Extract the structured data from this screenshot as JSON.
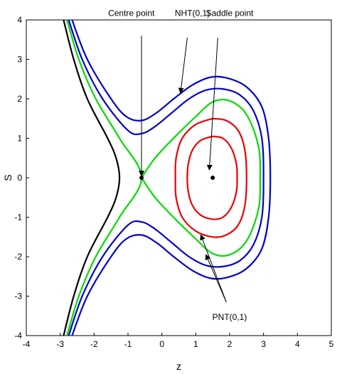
{
  "chart_data": {
    "type": "line",
    "xlabel": "z",
    "ylabel": "S",
    "xlim": [
      -4,
      5
    ],
    "ylim": [
      -4,
      4
    ],
    "x_ticks": [
      "-4",
      "-3",
      "-2",
      "-1",
      "0",
      "1",
      "2",
      "3",
      "4",
      "5"
    ],
    "y_ticks": [
      "4",
      "3",
      "2",
      "1",
      "0",
      "-1",
      "-2",
      "-3",
      "-4"
    ],
    "grid": false,
    "centre_point": {
      "x": -0.6,
      "y": 0
    },
    "saddle_point": {
      "x": 1.5,
      "y": 0
    },
    "colors": {
      "black": "#000000",
      "green": "#00dd00",
      "blue": "#0000cc",
      "red": "#ee0000"
    },
    "series": [
      {
        "color": "black",
        "points": [
          [
            -2.9,
            4.0
          ],
          [
            -2.6,
            3.0
          ],
          [
            -2.2,
            2.0
          ],
          [
            -1.6,
            1.0
          ],
          [
            -1.35,
            0.5
          ],
          [
            -1.25,
            0.0
          ],
          [
            -1.35,
            -0.5
          ],
          [
            -1.6,
            -1.0
          ],
          [
            -2.2,
            -2.0
          ],
          [
            -2.6,
            -3.0
          ],
          [
            -2.9,
            -4.0
          ]
        ]
      },
      {
        "color": "green",
        "points": [
          [
            -2.8,
            4.0
          ],
          [
            -2.45,
            3.0
          ],
          [
            -1.95,
            2.0
          ],
          [
            -1.25,
            1.0
          ],
          [
            -0.6,
            0.0
          ],
          [
            -1.25,
            -1.0
          ],
          [
            -1.95,
            -2.0
          ],
          [
            -2.45,
            -3.0
          ],
          [
            -2.8,
            -4.0
          ]
        ]
      },
      {
        "color": "green",
        "points": [
          [
            -0.6,
            0.0
          ],
          [
            -0.2,
            0.5
          ],
          [
            0.4,
            1.05
          ],
          [
            1.0,
            1.55
          ],
          [
            1.5,
            1.92
          ],
          [
            2.0,
            1.95
          ],
          [
            2.5,
            1.6
          ],
          [
            2.85,
            0.8
          ],
          [
            2.9,
            0.0
          ],
          [
            2.85,
            -0.8
          ],
          [
            2.5,
            -1.6
          ],
          [
            2.0,
            -1.95
          ],
          [
            1.5,
            -1.92
          ],
          [
            1.0,
            -1.55
          ],
          [
            0.4,
            -1.05
          ],
          [
            -0.2,
            -0.5
          ],
          [
            -0.6,
            0.0
          ]
        ]
      },
      {
        "color": "blue",
        "points": [
          [
            -2.75,
            4.0
          ],
          [
            -2.35,
            3.0
          ],
          [
            -1.75,
            2.0
          ],
          [
            -1.0,
            1.2
          ],
          [
            -0.6,
            1.12
          ],
          [
            -0.2,
            1.3
          ],
          [
            0.3,
            1.65
          ],
          [
            0.8,
            2.0
          ],
          [
            1.3,
            2.22
          ],
          [
            1.8,
            2.25
          ],
          [
            2.3,
            2.1
          ],
          [
            2.7,
            1.7
          ],
          [
            2.95,
            1.0
          ],
          [
            3.0,
            0.0
          ],
          [
            2.95,
            -1.0
          ],
          [
            2.7,
            -1.7
          ],
          [
            2.3,
            -2.1
          ],
          [
            1.8,
            -2.25
          ],
          [
            1.3,
            -2.22
          ],
          [
            0.8,
            -2.0
          ],
          [
            0.3,
            -1.65
          ],
          [
            -0.2,
            -1.3
          ],
          [
            -0.6,
            -1.12
          ],
          [
            -1.0,
            -1.2
          ],
          [
            -1.75,
            -2.0
          ],
          [
            -2.35,
            -3.0
          ],
          [
            -2.75,
            -4.0
          ]
        ]
      },
      {
        "color": "blue",
        "points": [
          [
            -2.65,
            4.0
          ],
          [
            -2.2,
            3.0
          ],
          [
            -1.5,
            2.0
          ],
          [
            -1.05,
            1.55
          ],
          [
            -0.6,
            1.45
          ],
          [
            -0.15,
            1.65
          ],
          [
            0.35,
            2.0
          ],
          [
            0.9,
            2.35
          ],
          [
            1.45,
            2.55
          ],
          [
            1.95,
            2.52
          ],
          [
            2.5,
            2.3
          ],
          [
            2.95,
            1.8
          ],
          [
            3.15,
            1.0
          ],
          [
            3.2,
            0.0
          ],
          [
            3.15,
            -1.0
          ],
          [
            2.95,
            -1.8
          ],
          [
            2.5,
            -2.3
          ],
          [
            1.95,
            -2.52
          ],
          [
            1.45,
            -2.55
          ],
          [
            0.9,
            -2.35
          ],
          [
            0.35,
            -2.0
          ],
          [
            -0.15,
            -1.65
          ],
          [
            -0.6,
            -1.45
          ],
          [
            -1.05,
            -1.55
          ],
          [
            -1.5,
            -2.0
          ],
          [
            -2.2,
            -3.0
          ],
          [
            -2.65,
            -4.0
          ]
        ]
      },
      {
        "color": "red",
        "points": [
          [
            1.5,
            1.5
          ],
          [
            1.9,
            1.45
          ],
          [
            2.25,
            1.2
          ],
          [
            2.45,
            0.7
          ],
          [
            2.5,
            0.0
          ],
          [
            2.45,
            -0.7
          ],
          [
            2.25,
            -1.2
          ],
          [
            1.9,
            -1.45
          ],
          [
            1.5,
            -1.5
          ],
          [
            1.0,
            -1.35
          ],
          [
            0.6,
            -1.0
          ],
          [
            0.42,
            -0.5
          ],
          [
            0.4,
            0.0
          ],
          [
            0.42,
            0.5
          ],
          [
            0.6,
            1.0
          ],
          [
            1.0,
            1.35
          ],
          [
            1.5,
            1.5
          ]
        ]
      },
      {
        "color": "red",
        "points": [
          [
            1.5,
            1.05
          ],
          [
            1.8,
            1.0
          ],
          [
            2.05,
            0.75
          ],
          [
            2.2,
            0.35
          ],
          [
            2.22,
            0.0
          ],
          [
            2.2,
            -0.35
          ],
          [
            2.05,
            -0.75
          ],
          [
            1.8,
            -1.0
          ],
          [
            1.5,
            -1.05
          ],
          [
            1.15,
            -0.95
          ],
          [
            0.9,
            -0.7
          ],
          [
            0.78,
            -0.35
          ],
          [
            0.75,
            0.0
          ],
          [
            0.78,
            0.35
          ],
          [
            0.9,
            0.7
          ],
          [
            1.15,
            0.95
          ],
          [
            1.5,
            1.05
          ]
        ]
      }
    ],
    "annotations": [
      {
        "text": "Centre point",
        "text_at": [
          -0.9,
          4.1
        ],
        "arrow_from": [
          -0.6,
          3.6
        ],
        "arrow_to": [
          -0.6,
          0.05
        ]
      },
      {
        "text": "NHT(0,1)",
        "text_at": [
          0.9,
          4.1
        ],
        "arrow_from": [
          0.75,
          3.55
        ],
        "arrow_to": [
          0.55,
          2.15
        ]
      },
      {
        "text": "Saddle point",
        "text_at": [
          2.0,
          4.1
        ],
        "arrow_from": [
          1.65,
          3.55
        ],
        "arrow_to": [
          1.4,
          0.2
        ]
      },
      {
        "text": "PNT(0,1)",
        "text_at": [
          2.0,
          -3.6
        ],
        "arrow_from": [
          1.9,
          -3.15
        ],
        "arrow_to": [
          1.15,
          -1.45
        ]
      },
      {
        "text": "",
        "text_at": null,
        "arrow_from": [
          1.9,
          -3.15
        ],
        "arrow_to": [
          1.3,
          -1.95
        ]
      }
    ]
  }
}
